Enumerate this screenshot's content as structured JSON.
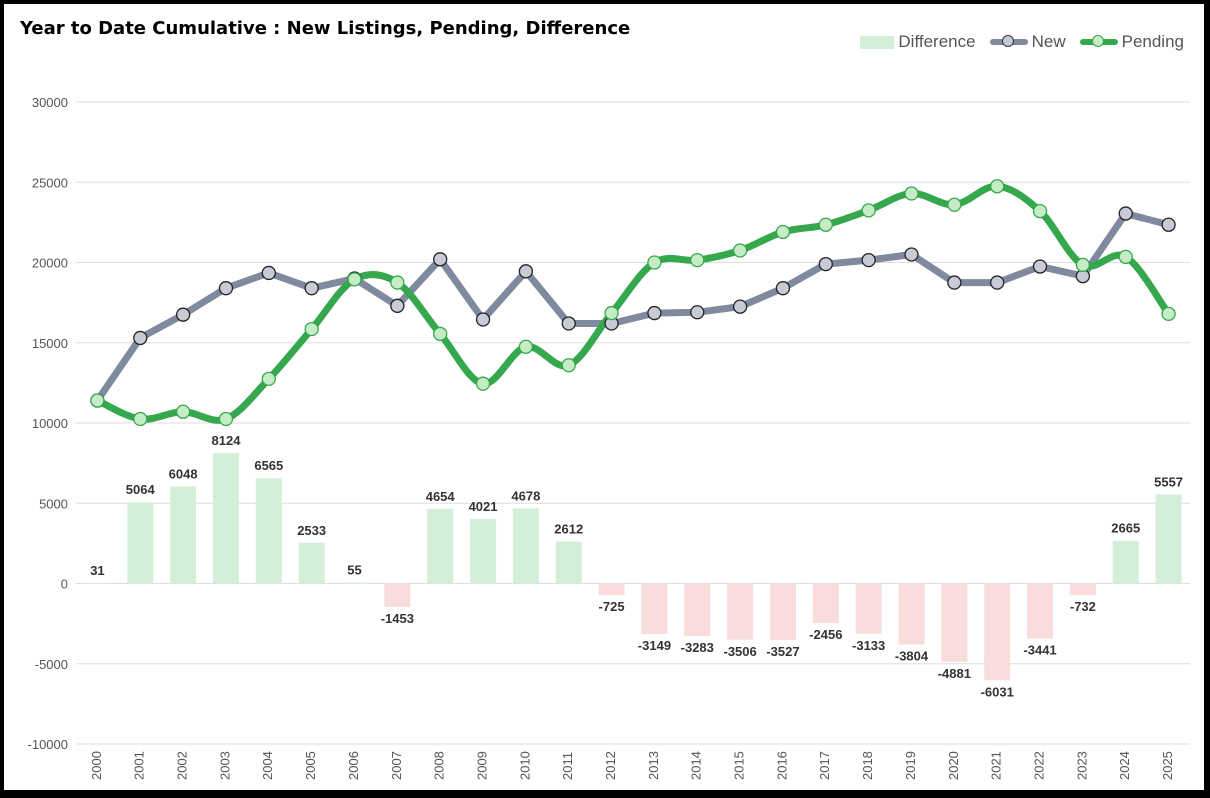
{
  "chart_data": {
    "type": "bar+line",
    "title": "Year to Date Cumulative : New Listings, Pending, Difference",
    "categories": [
      "2000",
      "2001",
      "2002",
      "2003",
      "2004",
      "2005",
      "2006",
      "2007",
      "2008",
      "2009",
      "2010",
      "2011",
      "2012",
      "2013",
      "2014",
      "2015",
      "2016",
      "2017",
      "2018",
      "2019",
      "2020",
      "2021",
      "2022",
      "2023",
      "2024",
      "2025"
    ],
    "ylim": [
      -10000,
      30000
    ],
    "yticks": [
      30000,
      25000,
      20000,
      15000,
      10000,
      5000,
      0,
      -5000,
      -10000
    ],
    "grid": true,
    "legend_position": "top-right",
    "series": [
      {
        "name": "Difference",
        "kind": "bar",
        "color_positive": "#d4efd8",
        "color_negative": "#f9dcdc",
        "values": [
          31,
          5064,
          6048,
          8124,
          6565,
          2533,
          55,
          -1453,
          4654,
          4021,
          4678,
          2612,
          -725,
          -3149,
          -3283,
          -3506,
          -3527,
          -2456,
          -3133,
          -3804,
          -4881,
          -6031,
          -3441,
          -732,
          2665,
          5557
        ]
      },
      {
        "name": "New",
        "kind": "line",
        "color": "#7f8a9e",
        "marker_fill": "#c8cad6",
        "values": [
          11400,
          15300,
          16750,
          18400,
          19350,
          18400,
          19000,
          17300,
          20200,
          16450,
          19450,
          16200,
          16200,
          16850,
          16900,
          17250,
          18400,
          19900,
          20150,
          20500,
          18750,
          18750,
          19750,
          19150,
          23050,
          22350
        ]
      },
      {
        "name": "Pending",
        "kind": "line",
        "color": "#35a84d",
        "marker_fill": "#c6ecc6",
        "smooth": true,
        "values": [
          11400,
          10250,
          10700,
          10250,
          12750,
          15850,
          18950,
          18750,
          15550,
          12450,
          14750,
          13600,
          16850,
          20000,
          20150,
          20750,
          21900,
          22350,
          23250,
          24300,
          23600,
          24750,
          23200,
          19850,
          20350,
          16800
        ]
      }
    ]
  }
}
